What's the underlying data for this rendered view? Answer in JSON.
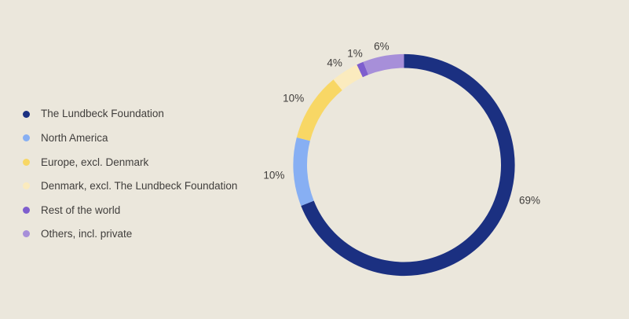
{
  "canvas": {
    "background": "#EBE7DC",
    "text_color": "#403E3C"
  },
  "chart_data": {
    "type": "pie",
    "subtype": "donut",
    "title": "",
    "legend_position": "left",
    "start_angle_deg": 0,
    "direction": "clockwise",
    "slices": [
      {
        "label": "The Lundbeck Foundation",
        "value": 69,
        "pct_label": "69%",
        "color": "#1B3081"
      },
      {
        "label": "North America",
        "value": 10,
        "pct_label": "10%",
        "color": "#87AFF3"
      },
      {
        "label": "Europe, excl. Denmark",
        "value": 10,
        "pct_label": "10%",
        "color": "#F8D765"
      },
      {
        "label": "Denmark, excl. The Lundbeck Foundation",
        "value": 4,
        "pct_label": "4%",
        "color": "#FBEBBE"
      },
      {
        "label": "Rest of the world",
        "value": 1,
        "pct_label": "1%",
        "color": "#7E5ECE"
      },
      {
        "label": "Others, incl. private",
        "value": 6,
        "pct_label": "6%",
        "color": "#A78FD9"
      }
    ]
  }
}
